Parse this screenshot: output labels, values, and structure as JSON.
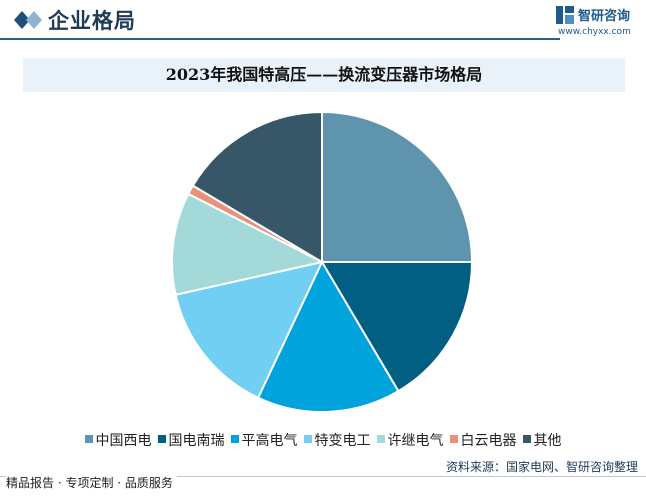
{
  "header": {
    "section_title": "企业格局",
    "logo_text": "智研咨询",
    "logo_url": "www.chyxx.com"
  },
  "footer": {
    "tagline": "精品报告 · 专项定制 · 品质服务",
    "source": "资料来源：国家电网、智研咨询整理"
  },
  "colors": {
    "accent": "#2c5f86",
    "title_band": "#e9f2f8"
  },
  "chart_data": {
    "type": "pie",
    "title": "2023年我国特高压——换流变压器市场格局",
    "legend_position": "bottom",
    "start_angle_deg": 0,
    "direction": "clockwise",
    "slices": [
      {
        "name": "中国西电",
        "value": 25.0,
        "color": "#5e94ae"
      },
      {
        "name": "国电南瑞",
        "value": 16.5,
        "color": "#005f82"
      },
      {
        "name": "平高电气",
        "value": 15.5,
        "color": "#00a3dc"
      },
      {
        "name": "特变电工",
        "value": 14.5,
        "color": "#70cff2"
      },
      {
        "name": "许继电气",
        "value": 11.0,
        "color": "#a3d9d9"
      },
      {
        "name": "白云电器",
        "value": 1.0,
        "color": "#e8927c"
      },
      {
        "name": "其他",
        "value": 16.5,
        "color": "#375668"
      }
    ]
  }
}
